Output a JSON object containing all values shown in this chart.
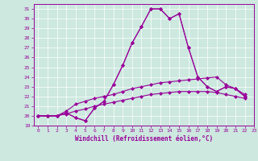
{
  "xlabel": "Windchill (Refroidissement éolien,°C)",
  "background_color": "#cce8df",
  "line_color": "#990099",
  "xlim": [
    -0.5,
    23
  ],
  "ylim": [
    19,
    31.5
  ],
  "yticks": [
    19,
    20,
    21,
    22,
    23,
    24,
    25,
    26,
    27,
    28,
    29,
    30,
    31
  ],
  "xticks": [
    0,
    1,
    2,
    3,
    4,
    5,
    6,
    7,
    8,
    9,
    10,
    11,
    12,
    13,
    14,
    15,
    16,
    17,
    18,
    19,
    20,
    21,
    22,
    23
  ],
  "series": [
    [
      20.0,
      20.0,
      20.0,
      20.3,
      19.8,
      19.5,
      20.8,
      21.5,
      23.2,
      25.2,
      27.5,
      29.2,
      31.0,
      31.0,
      30.0,
      30.5,
      27.0,
      24.0,
      23.0,
      22.5,
      23.0,
      22.8,
      22.0
    ],
    [
      20.0,
      20.0,
      20.0,
      20.3,
      19.8,
      19.5,
      20.8,
      21.5,
      23.2,
      25.2,
      27.5,
      29.2,
      31.0,
      31.0,
      30.0,
      30.5,
      27.0,
      24.0,
      23.0,
      22.5,
      23.0,
      22.8,
      22.0
    ],
    [
      20.0,
      20.0,
      20.0,
      20.5,
      21.2,
      21.5,
      21.8,
      22.0,
      22.2,
      22.5,
      22.8,
      23.0,
      23.2,
      23.4,
      23.5,
      23.6,
      23.7,
      23.8,
      23.9,
      24.0,
      23.2,
      22.8,
      22.2
    ],
    [
      20.0,
      20.0,
      20.0,
      20.2,
      20.5,
      20.7,
      21.0,
      21.2,
      21.4,
      21.6,
      21.8,
      22.0,
      22.2,
      22.3,
      22.4,
      22.5,
      22.5,
      22.5,
      22.5,
      22.4,
      22.2,
      22.0,
      21.8
    ]
  ]
}
